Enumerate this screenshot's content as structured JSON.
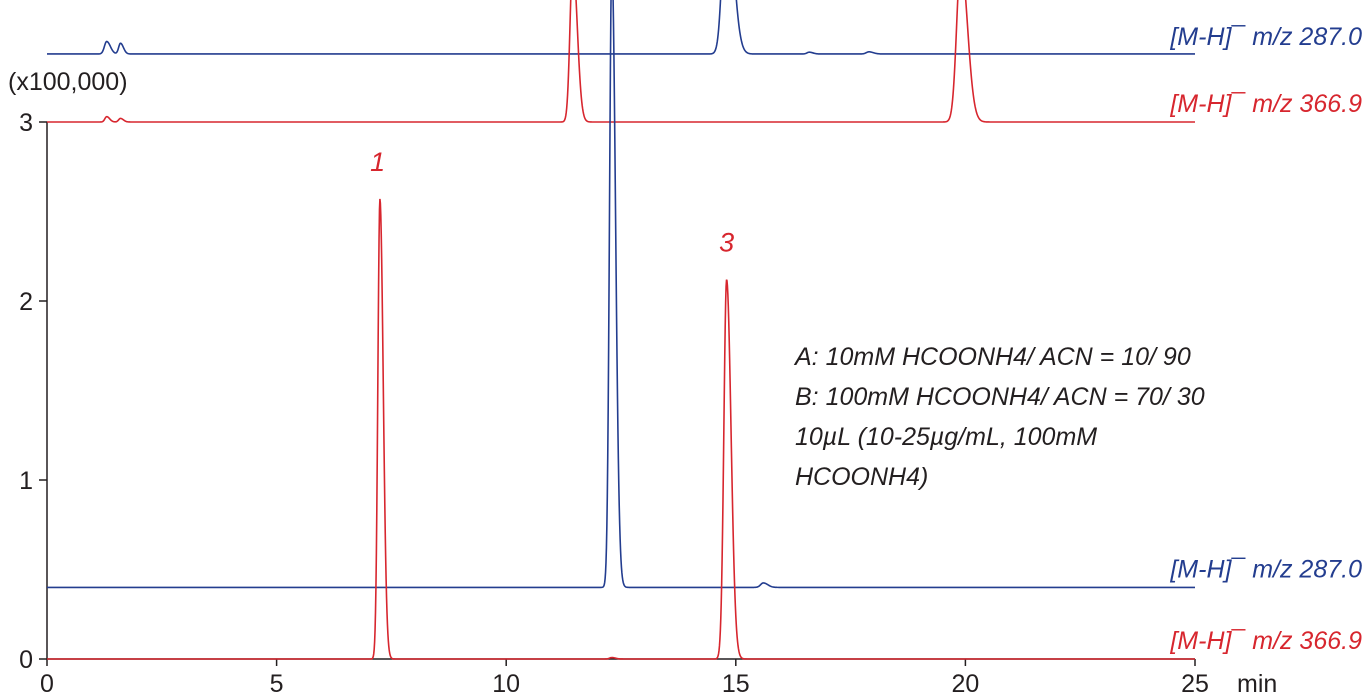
{
  "chart_data": {
    "type": "line",
    "x_unit": "min",
    "y_scale": "(x100,000)",
    "xlim": [
      0,
      25
    ],
    "ylim": [
      0,
      3
    ],
    "x_ticks": [
      "0",
      "5",
      "10",
      "15",
      "20",
      "25"
    ],
    "y_ticks": [
      "0",
      "1",
      "2",
      "3"
    ],
    "peak_labels": [
      {
        "text": "1",
        "x": 7.2
      },
      {
        "text": "3",
        "x": 14.8
      }
    ],
    "conditions": [
      "A:   10mM HCOONH4/ ACN = 10/ 90",
      "B: 100mM HCOONH4/ ACN = 70/ 30",
      "10µL (10-25µg/mL, 100mM",
      "HCOONH4)"
    ],
    "series": [
      {
        "label": "[M-H]¯ m/z 287.0",
        "color": "#233d8f",
        "group": "upper",
        "baseline": 3.38,
        "peaks": [
          {
            "x": 1.3,
            "height": 0.07,
            "width": 0.05
          },
          {
            "x": 1.6,
            "height": 0.06,
            "width": 0.04
          },
          {
            "x": 14.8,
            "height": 0.9,
            "width": 0.09
          },
          {
            "x": 16.6,
            "height": 0.01,
            "width": 0.05
          },
          {
            "x": 17.9,
            "height": 0.012,
            "width": 0.06
          }
        ]
      },
      {
        "label": "[M-H]¯ m/z 366.9",
        "color": "#d7262e",
        "group": "upper",
        "baseline": 3.0,
        "peaks": [
          {
            "x": 1.3,
            "height": 0.03,
            "width": 0.04
          },
          {
            "x": 1.6,
            "height": 0.02,
            "width": 0.04
          },
          {
            "x": 11.45,
            "height": 0.9,
            "width": 0.06
          },
          {
            "x": 19.9,
            "height": 0.9,
            "width": 0.09
          }
        ]
      },
      {
        "label": "[M-H]¯ m/z 287.0",
        "color": "#233d8f",
        "group": "lower",
        "baseline": 0.4,
        "peaks": [
          {
            "x": 12.3,
            "height": 3.5,
            "width": 0.05
          },
          {
            "x": 15.6,
            "height": 0.025,
            "width": 0.06
          }
        ]
      },
      {
        "label": "[M-H]¯ m/z 366.9",
        "color": "#d7262e",
        "group": "lower",
        "baseline": 0.0,
        "peaks": [
          {
            "x": 7.25,
            "height": 2.57,
            "width": 0.045
          },
          {
            "x": 12.3,
            "height": 0.008,
            "width": 0.05
          },
          {
            "x": 14.8,
            "height": 2.12,
            "width": 0.06
          }
        ]
      }
    ]
  }
}
